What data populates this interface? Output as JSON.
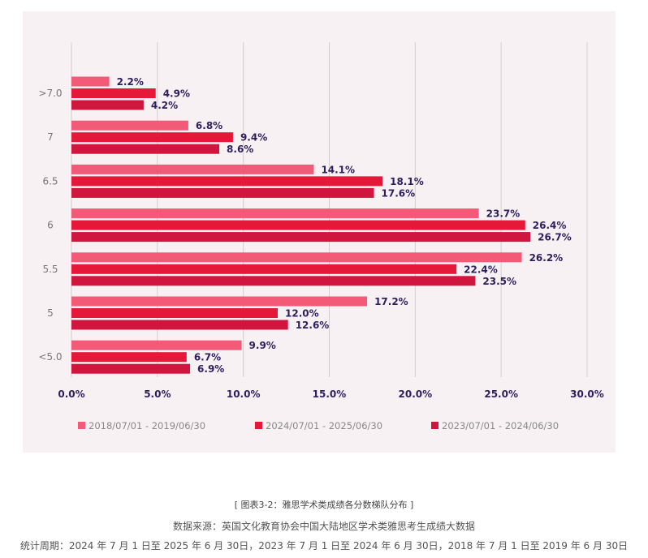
{
  "chart_data": {
    "type": "bar",
    "orientation": "horizontal",
    "categories": [
      ">7.0",
      "7",
      "6.5",
      "6",
      "5.5",
      "5",
      "<5.0"
    ],
    "series": [
      {
        "name": "2018/07/01 - 2019/06/30",
        "color": "#f25a78",
        "values": [
          2.2,
          6.8,
          14.1,
          23.7,
          26.2,
          17.2,
          9.9
        ]
      },
      {
        "name": "2024/07/01 - 2025/06/30",
        "color": "#e5183a",
        "values": [
          4.9,
          9.4,
          18.1,
          26.4,
          22.4,
          12.0,
          6.7
        ]
      },
      {
        "name": "2023/07/01 - 2024/06/30",
        "color": "#d0153f",
        "values": [
          4.2,
          8.6,
          17.6,
          26.7,
          23.5,
          12.6,
          6.9
        ]
      }
    ],
    "xlim": [
      0,
      30
    ],
    "xticks": [
      "0.0%",
      "5.0%",
      "10.0%",
      "15.0%",
      "20.0%",
      "25.0%",
      "30.0%"
    ],
    "grid": true,
    "legend": "bottom",
    "label_color": "#2c1f5e"
  },
  "caption": {
    "title": "[ 图表3-2：雅思学术类成绩各分数梯队分布 ]",
    "source": "数据来源：英国文化教育协会中国大陆地区学术类雅思考生成绩大数据",
    "period": "统计周期：2024 年 7 月 1 日至 2025 年 6 月 30日，2023 年 7 月 1 日至 2024 年 6 月 30日，2018 年 7 月 1 日至 2019 年 6 月 30日"
  }
}
